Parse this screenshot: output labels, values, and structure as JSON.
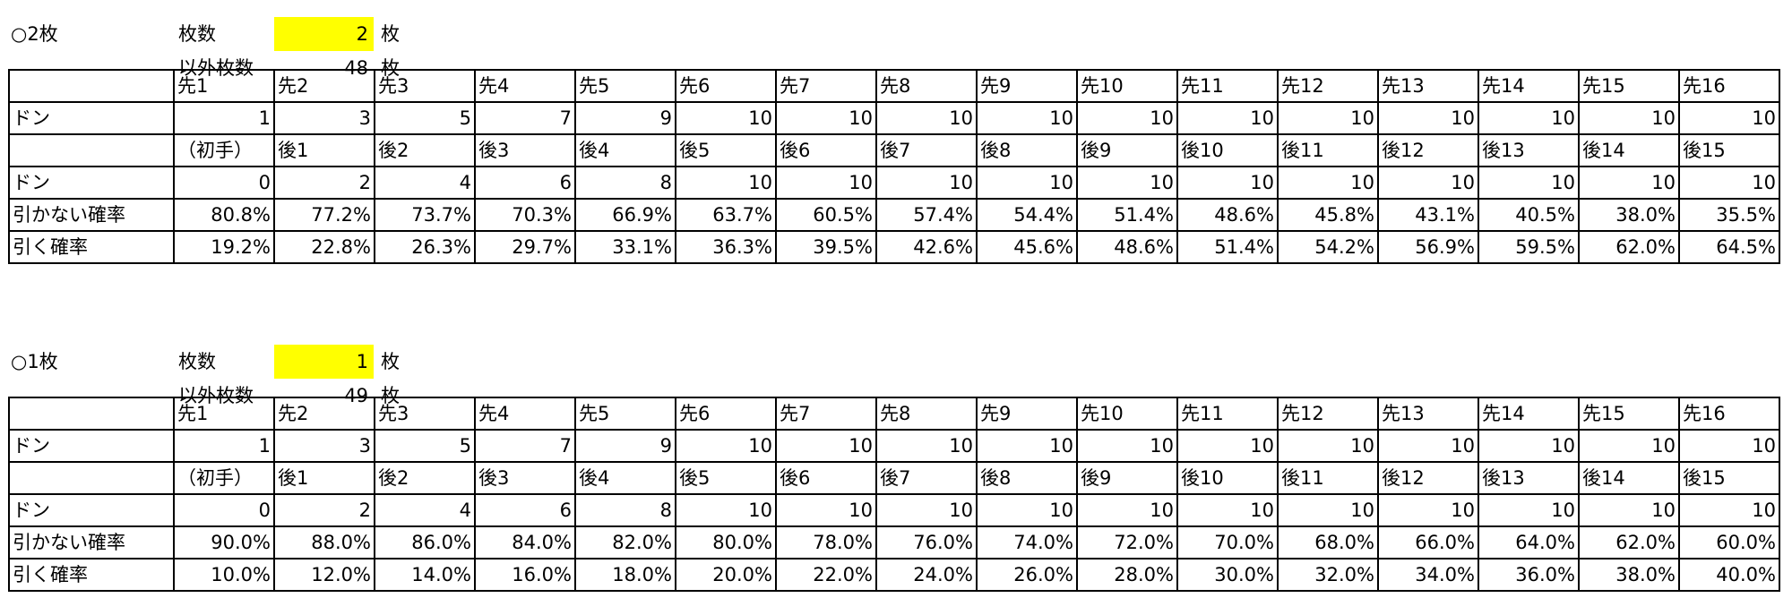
{
  "sections": [
    {
      "title": "○2枚",
      "count_label": "枚数",
      "count": 2,
      "count_unit": "枚",
      "other_label": "以外枚数",
      "other": 48,
      "other_unit": "枚",
      "table": {
        "sente_headers": [
          "先1",
          "先2",
          "先3",
          "先4",
          "先5",
          "先6",
          "先7",
          "先8",
          "先9",
          "先10",
          "先11",
          "先12",
          "先13",
          "先14",
          "先15",
          "先16"
        ],
        "sente_don_label": "ドン",
        "sente_don": [
          1,
          3,
          5,
          7,
          9,
          10,
          10,
          10,
          10,
          10,
          10,
          10,
          10,
          10,
          10,
          10
        ],
        "gote_headers": [
          "（初手）",
          "後1",
          "後2",
          "後3",
          "後4",
          "後5",
          "後6",
          "後7",
          "後8",
          "後9",
          "後10",
          "後11",
          "後12",
          "後13",
          "後14",
          "後15"
        ],
        "gote_don_label": "ドン",
        "gote_don": [
          0,
          2,
          4,
          6,
          8,
          10,
          10,
          10,
          10,
          10,
          10,
          10,
          10,
          10,
          10,
          10
        ],
        "miss_label": "引かない確率",
        "miss": [
          "80.8%",
          "77.2%",
          "73.7%",
          "70.3%",
          "66.9%",
          "63.7%",
          "60.5%",
          "57.4%",
          "54.4%",
          "51.4%",
          "48.6%",
          "45.8%",
          "43.1%",
          "40.5%",
          "38.0%",
          "35.5%"
        ],
        "hit_label": "引く確率",
        "hit": [
          "19.2%",
          "22.8%",
          "26.3%",
          "29.7%",
          "33.1%",
          "36.3%",
          "39.5%",
          "42.6%",
          "45.6%",
          "48.6%",
          "51.4%",
          "54.2%",
          "56.9%",
          "59.5%",
          "62.0%",
          "64.5%"
        ]
      }
    },
    {
      "title": "○1枚",
      "count_label": "枚数",
      "count": 1,
      "count_unit": "枚",
      "other_label": "以外枚数",
      "other": 49,
      "other_unit": "枚",
      "table": {
        "sente_headers": [
          "先1",
          "先2",
          "先3",
          "先4",
          "先5",
          "先6",
          "先7",
          "先8",
          "先9",
          "先10",
          "先11",
          "先12",
          "先13",
          "先14",
          "先15",
          "先16"
        ],
        "sente_don_label": "ドン",
        "sente_don": [
          1,
          3,
          5,
          7,
          9,
          10,
          10,
          10,
          10,
          10,
          10,
          10,
          10,
          10,
          10,
          10
        ],
        "gote_headers": [
          "（初手）",
          "後1",
          "後2",
          "後3",
          "後4",
          "後5",
          "後6",
          "後7",
          "後8",
          "後9",
          "後10",
          "後11",
          "後12",
          "後13",
          "後14",
          "後15"
        ],
        "gote_don_label": "ドン",
        "gote_don": [
          0,
          2,
          4,
          6,
          8,
          10,
          10,
          10,
          10,
          10,
          10,
          10,
          10,
          10,
          10,
          10
        ],
        "miss_label": "引かない確率",
        "miss": [
          "90.0%",
          "88.0%",
          "86.0%",
          "84.0%",
          "82.0%",
          "80.0%",
          "78.0%",
          "76.0%",
          "74.0%",
          "72.0%",
          "70.0%",
          "68.0%",
          "66.0%",
          "64.0%",
          "62.0%",
          "60.0%"
        ],
        "hit_label": "引く確率",
        "hit": [
          "10.0%",
          "12.0%",
          "14.0%",
          "16.0%",
          "18.0%",
          "20.0%",
          "22.0%",
          "24.0%",
          "26.0%",
          "28.0%",
          "30.0%",
          "32.0%",
          "34.0%",
          "36.0%",
          "38.0%",
          "40.0%"
        ]
      }
    }
  ]
}
